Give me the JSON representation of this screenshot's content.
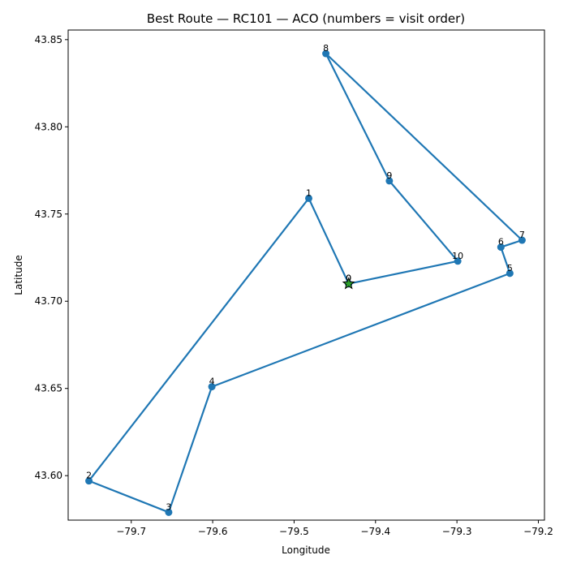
{
  "chart_data": {
    "type": "line",
    "title": "Best Route — RC101 — ACO (numbers = visit order)",
    "xlabel": "Longitude",
    "ylabel": "Latitude",
    "xlim": [
      -79.7775,
      -79.1925
    ],
    "ylim": [
      43.5745,
      43.8555
    ],
    "xticks": [
      -79.7,
      -79.6,
      -79.5,
      -79.4,
      -79.3,
      -79.2
    ],
    "xtick_labels": [
      "−79.7",
      "−79.6",
      "−79.5",
      "−79.4",
      "−79.3",
      "−79.2"
    ],
    "yticks": [
      43.6,
      43.65,
      43.7,
      43.75,
      43.8,
      43.85
    ],
    "ytick_labels": [
      "43.60",
      "43.65",
      "43.70",
      "43.75",
      "43.80",
      "43.85"
    ],
    "grid": false,
    "line_color": "#1f77b4",
    "depot_color": "#2ca02c",
    "route": [
      {
        "label": "0",
        "x": -79.433,
        "y": 43.71
      },
      {
        "label": "1",
        "x": -79.482,
        "y": 43.759
      },
      {
        "label": "2",
        "x": -79.752,
        "y": 43.597
      },
      {
        "label": "3",
        "x": -79.654,
        "y": 43.579
      },
      {
        "label": "4",
        "x": -79.601,
        "y": 43.651
      },
      {
        "label": "5",
        "x": -79.235,
        "y": 43.716
      },
      {
        "label": "6",
        "x": -79.246,
        "y": 43.731
      },
      {
        "label": "7",
        "x": -79.22,
        "y": 43.735
      },
      {
        "label": "8",
        "x": -79.461,
        "y": 43.842
      },
      {
        "label": "9",
        "x": -79.383,
        "y": 43.769
      },
      {
        "label": "10",
        "x": -79.299,
        "y": 43.723
      },
      {
        "label": "0",
        "x": -79.433,
        "y": 43.71
      }
    ]
  }
}
